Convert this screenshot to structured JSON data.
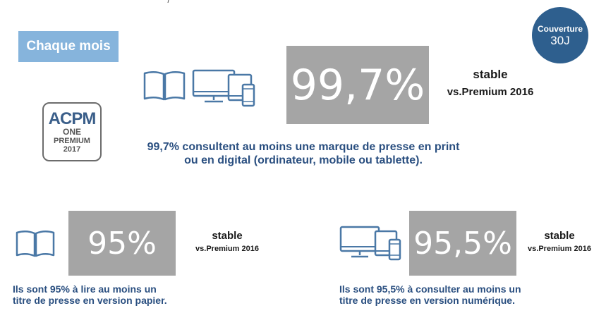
{
  "header": {
    "tab_label": "Chaque mois"
  },
  "coverage_badge": {
    "line1": "Couverture",
    "line2": "30J"
  },
  "logo": {
    "brand": "ACPM",
    "line1": "ONE",
    "line2": "PREMIUM",
    "line3": "2017"
  },
  "main_stat": {
    "value": "99,7%",
    "trend": "stable",
    "comparison": "vs.Premium 2016",
    "description_line1": "99,7% consultent au moins une marque de presse en print",
    "description_line2": "ou en digital (ordinateur, mobile ou tablette)."
  },
  "print_stat": {
    "value": "95%",
    "trend": "stable",
    "comparison": "vs.Premium 2016",
    "description_line1": "Ils sont 95% à lire au moins un",
    "description_line2": "titre de presse en version papier."
  },
  "digital_stat": {
    "value": "95,5%",
    "trend": "stable",
    "comparison": "vs.Premium 2016",
    "description_line1": "Ils sont 95,5% à consulter au moins un",
    "description_line2": "titre de presse en version numérique."
  },
  "colors": {
    "tab_bg": "#86b4dc",
    "coverage_bg": "#2e5f8e",
    "stat_box_bg": "#a5a5a5",
    "text_blue": "#2a4f80",
    "icon_stroke": "#4a78a6"
  },
  "icons": [
    "open-book-icon",
    "desktop-monitor-icon",
    "tablet-icon",
    "smartphone-icon"
  ]
}
